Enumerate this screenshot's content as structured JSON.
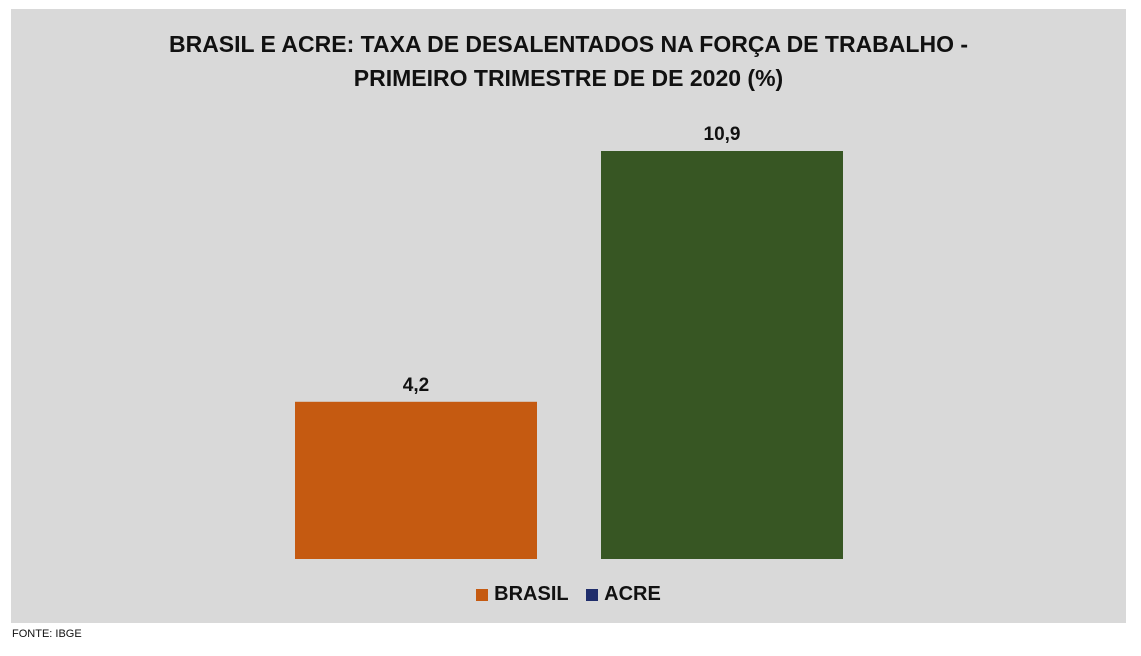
{
  "chart_data": {
    "type": "bar",
    "title_lines": [
      "BRASIL E ACRE: TAXA DE DESALENTADOS NA FORÇA DE TRABALHO -",
      "PRIMEIRO TRIMESTRE DE DE 2020 (%)"
    ],
    "categories": [
      "BRASIL",
      "ACRE"
    ],
    "values": [
      4.2,
      10.9
    ],
    "value_labels": [
      "4,2",
      "10,9"
    ],
    "bar_colors": [
      "#c55a11",
      "#375623"
    ],
    "legend": [
      {
        "label": "BRASIL",
        "color": "#c55a11"
      },
      {
        "label": "ACRE",
        "color": "#1f2d6b"
      }
    ],
    "legend_position": "bottom",
    "ylim": [
      0,
      10.9
    ],
    "grid": false,
    "background": "#d9d9d9"
  },
  "source": "FONTE: IBGE"
}
